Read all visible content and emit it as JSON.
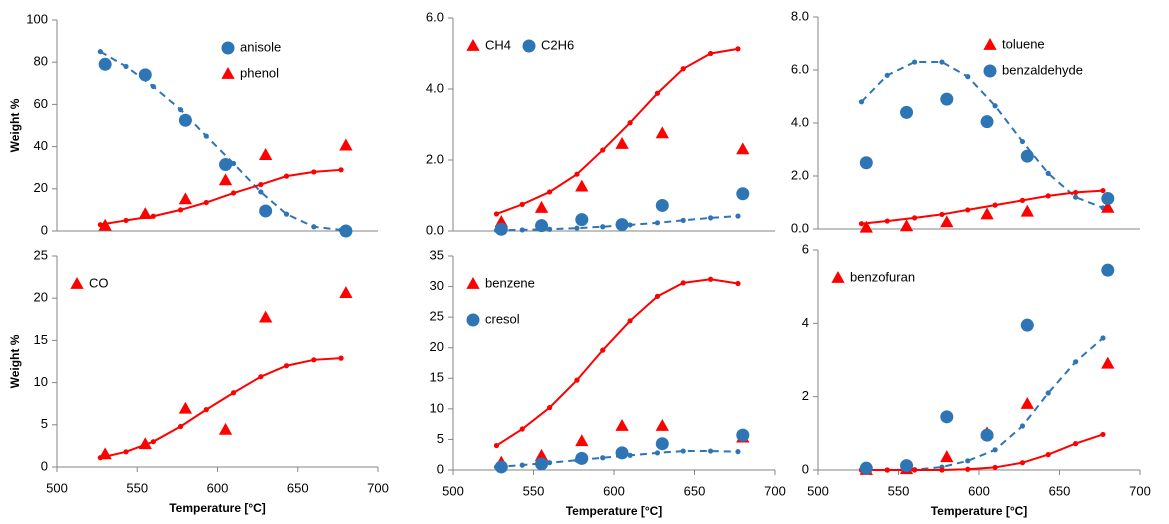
{
  "chart_data": [
    {
      "type": "scatter",
      "y_label": "Weight %",
      "xlim": [
        500,
        700
      ],
      "ylim": [
        0,
        100
      ],
      "yticks": [
        0,
        20,
        40,
        60,
        80,
        100
      ],
      "legend": "upper right",
      "series": [
        {
          "name": "anisole",
          "marker": "circle",
          "color": "#2e75b6",
          "x": [
            530,
            555,
            580,
            605,
            630,
            680
          ],
          "values": [
            79,
            74,
            52.5,
            31.5,
            9.5,
            0
          ]
        },
        {
          "name": "phenol",
          "marker": "triangle",
          "color": "#ff0000",
          "x": [
            530,
            555,
            580,
            605,
            630,
            680
          ],
          "values": [
            2.5,
            8,
            15,
            24,
            36,
            40.5
          ]
        },
        {
          "marker": "line",
          "dash": true,
          "color": "#2e75b6",
          "x": [
            527,
            543,
            560,
            577,
            593,
            610,
            627,
            643,
            660,
            677
          ],
          "values": [
            85,
            78,
            68.5,
            57.5,
            45,
            32,
            18.5,
            8,
            2,
            0.5
          ]
        },
        {
          "marker": "line",
          "dash": false,
          "color": "#ff0000",
          "x": [
            527,
            543,
            560,
            577,
            593,
            610,
            627,
            643,
            660,
            677
          ],
          "values": [
            3,
            5,
            7,
            10,
            13.5,
            18,
            22,
            26,
            28,
            29
          ]
        }
      ]
    },
    {
      "type": "scatter",
      "xlim": [
        500,
        700
      ],
      "ylim": [
        0,
        6
      ],
      "yticks": [
        {
          "value": 0,
          "label": "0.0"
        },
        {
          "value": 2,
          "label": "2.0"
        },
        {
          "value": 4,
          "label": "4.0"
        },
        {
          "value": 6,
          "label": "6.0"
        }
      ],
      "legend": "upper left",
      "legend_orientation": "horizontal",
      "series": [
        {
          "name": "CH4",
          "marker": "triangle",
          "color": "#ff0000",
          "x": [
            530,
            555,
            580,
            605,
            630,
            680
          ],
          "values": [
            0.25,
            0.65,
            1.25,
            2.45,
            2.75,
            2.3
          ]
        },
        {
          "name": "C2H6",
          "marker": "circle",
          "color": "#2e75b6",
          "x": [
            530,
            555,
            580,
            605,
            630,
            680
          ],
          "values": [
            0.05,
            0.15,
            0.32,
            0.18,
            0.72,
            1.05
          ]
        },
        {
          "marker": "line",
          "dash": false,
          "color": "#ff0000",
          "x": [
            527,
            543,
            560,
            577,
            593,
            610,
            627,
            643,
            660,
            677
          ],
          "values": [
            0.48,
            0.75,
            1.1,
            1.6,
            2.28,
            3.05,
            3.88,
            4.57,
            5.0,
            5.13
          ]
        },
        {
          "marker": "line",
          "dash": true,
          "color": "#2e75b6",
          "x": [
            527,
            543,
            560,
            577,
            593,
            610,
            627,
            643,
            660,
            677
          ],
          "values": [
            0.02,
            0.03,
            0.05,
            0.08,
            0.12,
            0.17,
            0.23,
            0.3,
            0.37,
            0.42
          ]
        }
      ]
    },
    {
      "type": "scatter",
      "xlim": [
        500,
        700
      ],
      "ylim": [
        0,
        8
      ],
      "yticks": [
        {
          "value": 0,
          "label": "0.0"
        },
        {
          "value": 2,
          "label": "2.0"
        },
        {
          "value": 4,
          "label": "4.0"
        },
        {
          "value": 6,
          "label": "6.0"
        },
        {
          "value": 8,
          "label": "8.0"
        }
      ],
      "legend": "upper right",
      "series": [
        {
          "name": "toluene",
          "marker": "triangle",
          "color": "#ff0000",
          "x": [
            530,
            555,
            580,
            605,
            630,
            680
          ],
          "values": [
            0.05,
            0.1,
            0.25,
            0.55,
            0.65,
            0.8
          ]
        },
        {
          "name": "benzaldehyde",
          "marker": "circle",
          "color": "#2e75b6",
          "x": [
            530,
            555,
            580,
            605,
            630,
            680
          ],
          "values": [
            2.5,
            4.4,
            4.9,
            4.05,
            2.75,
            1.15
          ]
        },
        {
          "marker": "line",
          "dash": true,
          "color": "#2e75b6",
          "x": [
            527,
            543,
            560,
            577,
            593,
            610,
            627,
            643,
            660,
            677
          ],
          "values": [
            4.8,
            5.8,
            6.3,
            6.3,
            5.75,
            4.65,
            3.3,
            2.1,
            1.2,
            0.8
          ]
        },
        {
          "marker": "line",
          "dash": false,
          "color": "#ff0000",
          "x": [
            527,
            543,
            560,
            577,
            593,
            610,
            627,
            643,
            660,
            677
          ],
          "values": [
            0.2,
            0.3,
            0.42,
            0.55,
            0.72,
            0.9,
            1.08,
            1.25,
            1.38,
            1.45
          ]
        }
      ]
    },
    {
      "type": "scatter",
      "x_label": "Temperature [°C]",
      "y_label": "Weight %",
      "xlim": [
        500,
        700
      ],
      "xticks": [
        500,
        550,
        600,
        650,
        700
      ],
      "ylim": [
        0,
        25
      ],
      "yticks": [
        0,
        5,
        10,
        15,
        20,
        25
      ],
      "legend": "upper left",
      "series": [
        {
          "name": "CO",
          "marker": "triangle",
          "color": "#ff0000",
          "x": [
            530,
            555,
            580,
            605,
            630,
            680
          ],
          "values": [
            1.5,
            2.7,
            6.9,
            4.4,
            17.7,
            20.6
          ]
        },
        {
          "marker": "line",
          "dash": false,
          "color": "#ff0000",
          "x": [
            527,
            543,
            560,
            577,
            593,
            610,
            627,
            643,
            660,
            677
          ],
          "values": [
            1.1,
            1.8,
            3.0,
            4.8,
            6.8,
            8.8,
            10.7,
            12.0,
            12.7,
            12.9
          ]
        }
      ]
    },
    {
      "type": "scatter",
      "x_label": "Temperature [°C]",
      "xlim": [
        500,
        700
      ],
      "xticks": [
        500,
        550,
        600,
        650,
        700
      ],
      "ylim": [
        0,
        35
      ],
      "yticks": [
        0,
        5,
        10,
        15,
        20,
        25,
        30,
        35
      ],
      "legend": "upper left",
      "series": [
        {
          "name": "benzene",
          "marker": "triangle",
          "color": "#ff0000",
          "x": [
            530,
            555,
            580,
            605,
            630,
            680
          ],
          "values": [
            1.2,
            2.3,
            4.7,
            7.2,
            7.2,
            5.3
          ]
        },
        {
          "name": "cresol",
          "marker": "circle",
          "color": "#2e75b6",
          "x": [
            530,
            555,
            580,
            605,
            630,
            680
          ],
          "values": [
            0.5,
            1.0,
            1.9,
            2.8,
            4.3,
            5.7
          ]
        },
        {
          "marker": "line",
          "dash": false,
          "color": "#ff0000",
          "x": [
            527,
            543,
            560,
            577,
            593,
            610,
            627,
            643,
            660,
            677
          ],
          "values": [
            4.0,
            6.7,
            10.2,
            14.7,
            19.6,
            24.4,
            28.4,
            30.6,
            31.2,
            30.5
          ]
        },
        {
          "marker": "line",
          "dash": true,
          "color": "#2e75b6",
          "x": [
            527,
            543,
            560,
            577,
            593,
            610,
            627,
            643,
            660,
            677
          ],
          "values": [
            0.5,
            0.8,
            1.2,
            1.6,
            2.0,
            2.4,
            2.8,
            3.1,
            3.1,
            3.0
          ]
        }
      ]
    },
    {
      "type": "scatter",
      "x_label": "Temperature [°C]",
      "xlim": [
        500,
        700
      ],
      "xticks": [
        500,
        550,
        600,
        650,
        700
      ],
      "ylim": [
        0,
        6
      ],
      "yticks": [
        0,
        2,
        4,
        6
      ],
      "legend": "upper left",
      "series": [
        {
          "name": "benzofuran",
          "marker": "triangle",
          "color": "#ff0000",
          "x": [
            530,
            555,
            580,
            605,
            630,
            680
          ],
          "values": [
            0,
            0.02,
            0.35,
            1.0,
            1.8,
            2.9
          ]
        },
        {
          "marker": "circle",
          "color": "#2e75b6",
          "x": [
            530,
            555,
            580,
            605,
            630,
            680
          ],
          "values": [
            0.05,
            0.12,
            1.45,
            0.95,
            3.95,
            5.45
          ]
        },
        {
          "marker": "line",
          "dash": true,
          "color": "#2e75b6",
          "x": [
            527,
            543,
            560,
            577,
            593,
            610,
            627,
            643,
            660,
            677
          ],
          "values": [
            0,
            0,
            0.01,
            0.08,
            0.25,
            0.55,
            1.2,
            2.1,
            2.95,
            3.6
          ]
        },
        {
          "marker": "line",
          "dash": false,
          "color": "#ff0000",
          "x": [
            527,
            543,
            560,
            577,
            593,
            610,
            627,
            643,
            660,
            677
          ],
          "values": [
            0,
            0,
            0,
            0,
            0.02,
            0.07,
            0.2,
            0.42,
            0.72,
            0.97
          ]
        }
      ]
    }
  ]
}
